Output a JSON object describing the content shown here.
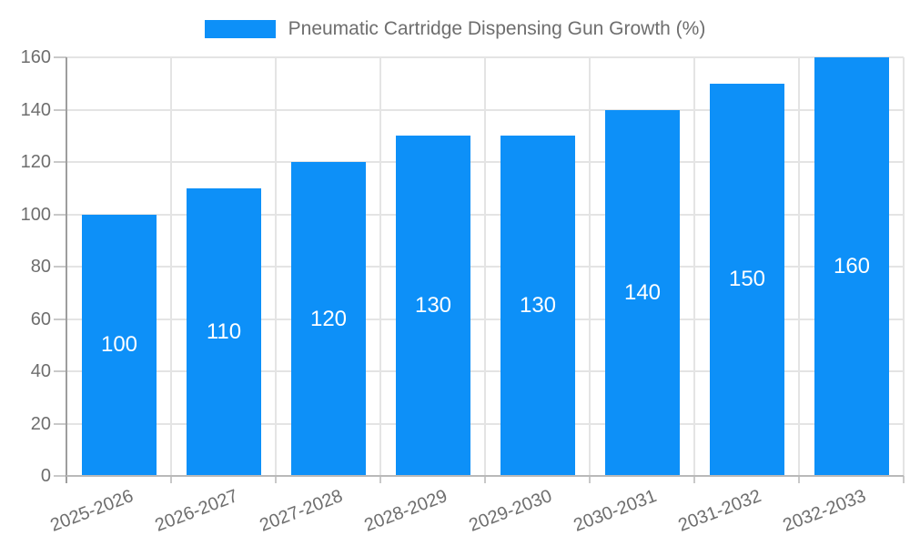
{
  "chart_data": {
    "type": "bar",
    "title": "Pneumatic Cartridge Dispensing Gun Growth (%)",
    "legend": {
      "position": "top",
      "label": "Pneumatic Cartridge Dispensing Gun Growth (%)"
    },
    "categories": [
      "2025-2026",
      "2026-2027",
      "2027-2028",
      "2028-2029",
      "2029-2030",
      "2030-2031",
      "2031-2032",
      "2032-2033"
    ],
    "series": [
      {
        "name": "Pneumatic Cartridge Dispensing Gun Growth (%)",
        "values": [
          100,
          110,
          120,
          130,
          130,
          140,
          150,
          160
        ]
      }
    ],
    "xlabel": "",
    "ylabel": "",
    "ylim": [
      0,
      160
    ],
    "yticks": [
      0,
      20,
      40,
      60,
      80,
      100,
      120,
      140,
      160
    ],
    "grid": true,
    "bar_value_labels_inside": true,
    "x_tick_rotation_deg": -21,
    "colors": {
      "bar": "#0d90f8",
      "bar_label": "#ffffff",
      "legend_text": "#6e6e6e",
      "axis_text": "#6e6e6e",
      "gridline": "#e4e4e4",
      "axis_line_y": "#9e9e9e",
      "axis_line_x": "#b9b9b9",
      "tick": "#c9c9c9",
      "background": "#ffffff"
    }
  }
}
